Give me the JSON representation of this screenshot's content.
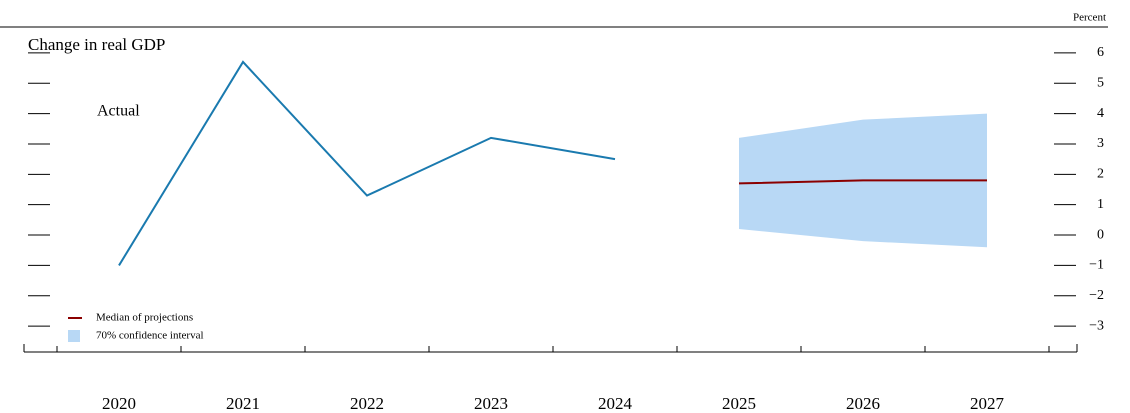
{
  "chart_data": {
    "type": "line",
    "title": "Change in real GDP",
    "y_axis_label": "Percent",
    "annotations": [
      "Actual"
    ],
    "categories": [
      "2020",
      "2021",
      "2022",
      "2023",
      "2024",
      "2025",
      "2026",
      "2027"
    ],
    "series": [
      {
        "name": "Actual",
        "color": "#1a7aaf",
        "values": [
          -1.0,
          5.7,
          1.3,
          3.2,
          2.5,
          null,
          null,
          null
        ],
        "legend": false
      },
      {
        "name": "Median of projections",
        "color": "#8b0000",
        "values": [
          null,
          null,
          null,
          null,
          null,
          1.7,
          1.8,
          1.8
        ]
      }
    ],
    "bands": [
      {
        "name": "70% confidence interval",
        "color": "#b8d8f5",
        "lower": [
          null,
          null,
          null,
          null,
          null,
          0.2,
          -0.2,
          -0.4
        ],
        "upper": [
          null,
          null,
          null,
          null,
          null,
          3.2,
          3.8,
          4.0
        ]
      }
    ],
    "ylim": [
      -3.85,
      6.85
    ],
    "yticks": [
      {
        "value": -3,
        "label": "−3"
      },
      {
        "value": -2,
        "label": "−2"
      },
      {
        "value": -1,
        "label": "−1"
      },
      0,
      1,
      2,
      3,
      4,
      5,
      6
    ],
    "legend": "lower left"
  }
}
